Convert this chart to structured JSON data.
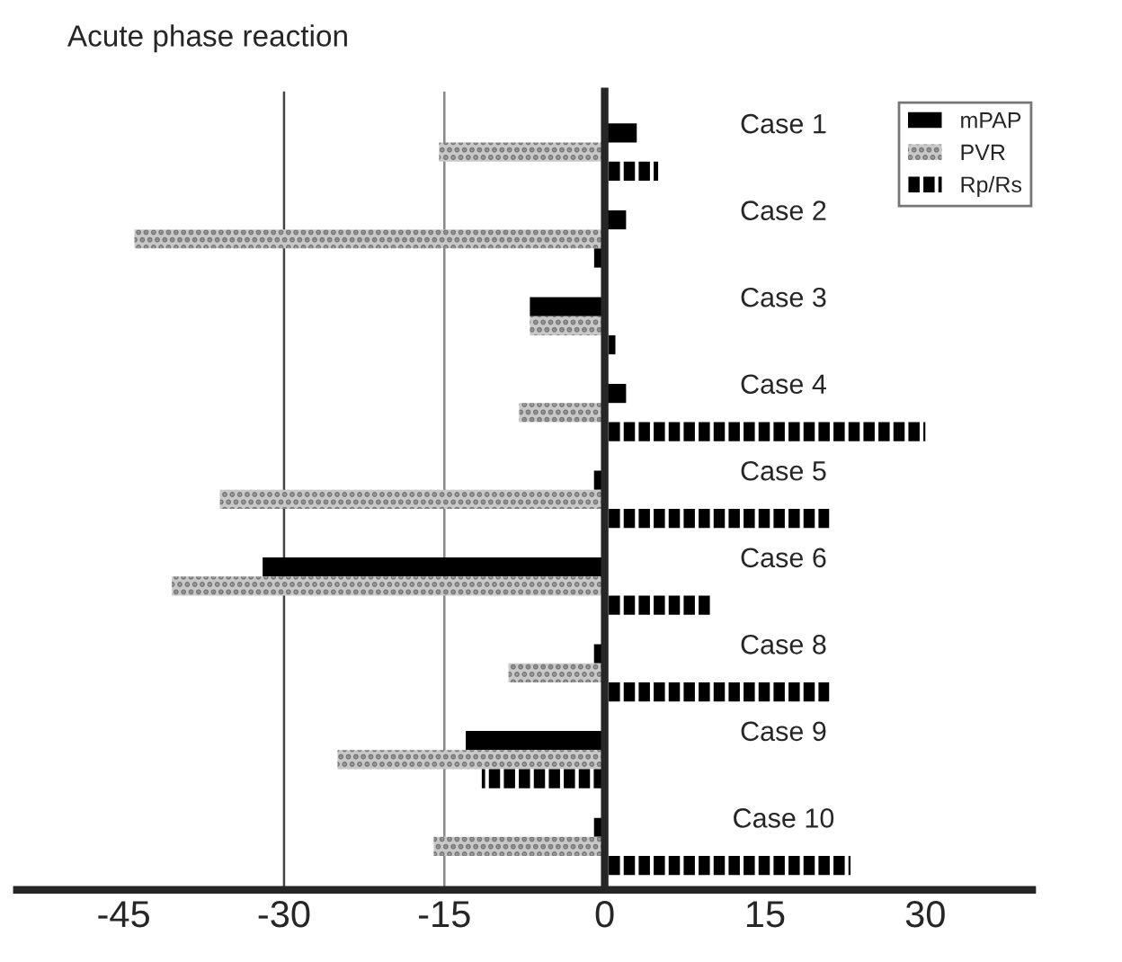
{
  "chart_data": {
    "type": "bar",
    "orientation": "horizontal",
    "title": "Acute phase reaction",
    "categories": [
      "Case 1",
      "Case 2",
      "Case 3",
      "Case 4",
      "Case 5",
      "Case 6",
      "Case 8",
      "Case 9",
      "Case 10"
    ],
    "series": [
      {
        "name": "mPAP",
        "color": "#000000",
        "values": [
          3,
          2,
          -7,
          2,
          -1,
          -32,
          -1,
          -13,
          -1
        ]
      },
      {
        "name": "PVR",
        "color": "#c8c8c8",
        "values": [
          -15.5,
          -44,
          -7,
          -8,
          -36,
          -40.5,
          -9,
          -25,
          -16
        ]
      },
      {
        "name": "Rp/Rs",
        "color": "#000000",
        "values": [
          5,
          -1,
          1,
          30,
          21,
          10,
          21,
          -11.5,
          23
        ]
      }
    ],
    "xlim": [
      -55,
      40
    ],
    "xticks": [
      -45,
      -30,
      -15,
      0,
      15,
      30
    ],
    "ref_lines": [
      {
        "axis": "x",
        "value": -30,
        "color": "#444444"
      },
      {
        "axis": "x",
        "value": -15,
        "color": "#888888"
      }
    ],
    "grid": false,
    "legend": "top right"
  }
}
